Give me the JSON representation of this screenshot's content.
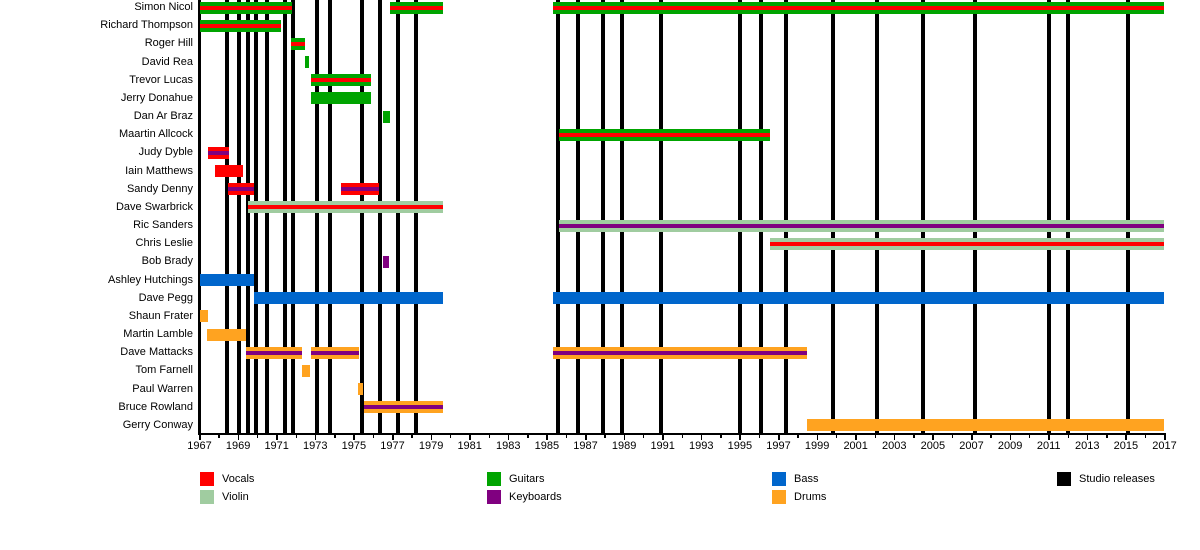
{
  "chart_data": {
    "type": "bar",
    "subtype": "gantt-membership-timeline",
    "title": "",
    "x_axis": {
      "min": 1967,
      "max": 2017,
      "tick_step_years": 1,
      "label_step_years": 2,
      "tick_labels": [
        "1967",
        "1969",
        "1971",
        "1973",
        "1975",
        "1977",
        "1979",
        "1981",
        "1983",
        "1985",
        "1987",
        "1989",
        "1991",
        "1993",
        "1995",
        "1997",
        "1999",
        "2001",
        "2003",
        "2005",
        "2007",
        "2009",
        "2011",
        "2013",
        "2015",
        "2017"
      ]
    },
    "grid": false,
    "legend_position": "bottom",
    "colors": {
      "vocals": "#FF0000",
      "guitars": "#00A400",
      "violin": "#A0CCA0",
      "keyboards": "#800080",
      "bass": "#0066CC",
      "drums": "#FFA320",
      "releases": "#000000"
    },
    "legend": [
      {
        "label": "Vocals",
        "color_key": "vocals"
      },
      {
        "label": "Violin",
        "color_key": "violin"
      },
      {
        "label": "Guitars",
        "color_key": "guitars"
      },
      {
        "label": "Keyboards",
        "color_key": "keyboards"
      },
      {
        "label": "Bass",
        "color_key": "bass"
      },
      {
        "label": "Drums",
        "color_key": "drums"
      },
      {
        "label": "Studio releases",
        "color_key": "releases"
      }
    ],
    "members": [
      {
        "name": "Simon Nicol",
        "instruments": [
          "guitars",
          "vocals"
        ],
        "segments": [
          [
            1967.05,
            1971.8
          ],
          [
            1976.85,
            1979.6
          ],
          [
            1985.3,
            2017
          ]
        ]
      },
      {
        "name": "Richard Thompson",
        "instruments": [
          "guitars",
          "vocals"
        ],
        "segments": [
          [
            1967.05,
            1971.2
          ]
        ]
      },
      {
        "name": "Roger Hill",
        "instruments": [
          "guitars",
          "vocals"
        ],
        "segments": [
          [
            1971.75,
            1972.45
          ]
        ]
      },
      {
        "name": "David Rea",
        "instruments": [
          "guitars"
        ],
        "segments": [
          [
            1972.45,
            1972.7
          ]
        ]
      },
      {
        "name": "Trevor Lucas",
        "instruments": [
          "guitars",
          "vocals"
        ],
        "segments": [
          [
            1972.8,
            1975.9
          ]
        ]
      },
      {
        "name": "Jerry Donahue",
        "instruments": [
          "guitars"
        ],
        "segments": [
          [
            1972.8,
            1975.9
          ]
        ]
      },
      {
        "name": "Dan Ar Braz",
        "instruments": [
          "guitars"
        ],
        "segments": [
          [
            1976.5,
            1976.85
          ]
        ]
      },
      {
        "name": "Maartin Allcock",
        "instruments": [
          "guitars",
          "vocals"
        ],
        "segments": [
          [
            1985.65,
            1996.55
          ]
        ]
      },
      {
        "name": "Judy Dyble",
        "instruments": [
          "vocals",
          "keyboards"
        ],
        "segments": [
          [
            1967.45,
            1968.55
          ]
        ]
      },
      {
        "name": "Iain Matthews",
        "instruments": [
          "vocals"
        ],
        "segments": [
          [
            1967.8,
            1969.25
          ]
        ]
      },
      {
        "name": "Sandy Denny",
        "instruments": [
          "vocals",
          "keyboards"
        ],
        "segments": [
          [
            1968.5,
            1969.85
          ],
          [
            1974.35,
            1976.3
          ]
        ]
      },
      {
        "name": "Dave Swarbrick",
        "instruments": [
          "violin",
          "vocals"
        ],
        "segments": [
          [
            1969.5,
            1979.6
          ]
        ]
      },
      {
        "name": "Ric Sanders",
        "instruments": [
          "violin",
          "keyboards"
        ],
        "segments": [
          [
            1985.65,
            2017
          ]
        ]
      },
      {
        "name": "Chris Leslie",
        "instruments": [
          "violin",
          "vocals"
        ],
        "segments": [
          [
            1996.55,
            2017
          ]
        ]
      },
      {
        "name": "Bob Brady",
        "instruments": [
          "keyboards"
        ],
        "segments": [
          [
            1976.5,
            1976.8
          ]
        ]
      },
      {
        "name": "Ashley Hutchings",
        "instruments": [
          "bass"
        ],
        "segments": [
          [
            1967.05,
            1969.8
          ]
        ]
      },
      {
        "name": "Dave Pegg",
        "instruments": [
          "bass"
        ],
        "segments": [
          [
            1969.8,
            1979.6
          ],
          [
            1985.3,
            2017
          ]
        ]
      },
      {
        "name": "Shaun Frater",
        "instruments": [
          "drums"
        ],
        "segments": [
          [
            1967.05,
            1967.45
          ]
        ]
      },
      {
        "name": "Martin Lamble",
        "instruments": [
          "drums"
        ],
        "segments": [
          [
            1967.4,
            1969.4
          ]
        ]
      },
      {
        "name": "Dave Mattacks",
        "instruments": [
          "drums",
          "keyboards"
        ],
        "segments": [
          [
            1969.4,
            1972.3
          ],
          [
            1972.8,
            1975.25
          ],
          [
            1985.3,
            1998.5
          ]
        ]
      },
      {
        "name": "Tom Farnell",
        "instruments": [
          "drums"
        ],
        "segments": [
          [
            1972.3,
            1972.75
          ]
        ]
      },
      {
        "name": "Paul Warren",
        "instruments": [
          "drums"
        ],
        "segments": [
          [
            1975.2,
            1975.45
          ]
        ]
      },
      {
        "name": "Bruce Rowland",
        "instruments": [
          "drums",
          "keyboards"
        ],
        "segments": [
          [
            1975.5,
            1979.6
          ]
        ]
      },
      {
        "name": "Gerry Conway",
        "instruments": [
          "drums"
        ],
        "segments": [
          [
            1998.5,
            2017
          ]
        ]
      }
    ],
    "studio_releases_years": [
      1968.45,
      1969.05,
      1969.5,
      1969.95,
      1970.5,
      1971.45,
      1971.85,
      1973.1,
      1973.75,
      1975.4,
      1976.35,
      1977.3,
      1978.2,
      1985.6,
      1986.6,
      1987.9,
      1988.9,
      1990.9,
      1995.0,
      1996.1,
      1997.4,
      1999.8,
      2002.1,
      2004.5,
      2007.2,
      2011.0,
      2012.0,
      2015.1
    ]
  }
}
